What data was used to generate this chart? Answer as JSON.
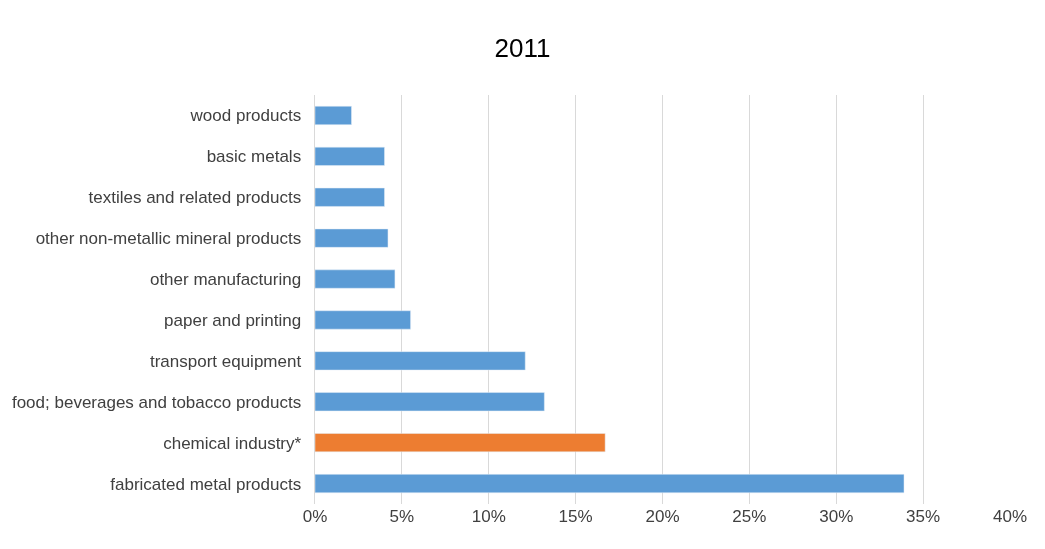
{
  "chart_data": {
    "type": "bar",
    "orientation": "horizontal",
    "title": "2011",
    "categories": [
      "wood products",
      "basic metals",
      "textiles and related products",
      "other non-metallic mineral products",
      "other manufacturing",
      "paper and printing",
      "transport equipment",
      "food; beverages and tobacco products",
      "chemical industry*",
      "fabricated metal products"
    ],
    "values": [
      2.1,
      4.0,
      4.0,
      4.2,
      4.6,
      5.5,
      12.1,
      13.2,
      16.7,
      33.9
    ],
    "colors": [
      "#5b9bd5",
      "#5b9bd5",
      "#5b9bd5",
      "#5b9bd5",
      "#5b9bd5",
      "#5b9bd5",
      "#5b9bd5",
      "#5b9bd5",
      "#ed7d31",
      "#5b9bd5"
    ],
    "xlim": [
      0,
      40
    ],
    "xticks": [
      {
        "value": 0,
        "label": "0%"
      },
      {
        "value": 5,
        "label": "5%"
      },
      {
        "value": 10,
        "label": "10%"
      },
      {
        "value": 15,
        "label": "15%"
      },
      {
        "value": 20,
        "label": "20%"
      },
      {
        "value": 25,
        "label": "25%"
      },
      {
        "value": 30,
        "label": "30%"
      },
      {
        "value": 35,
        "label": "35%"
      },
      {
        "value": 40,
        "label": "40%"
      }
    ],
    "grid": "x",
    "legend": false
  }
}
